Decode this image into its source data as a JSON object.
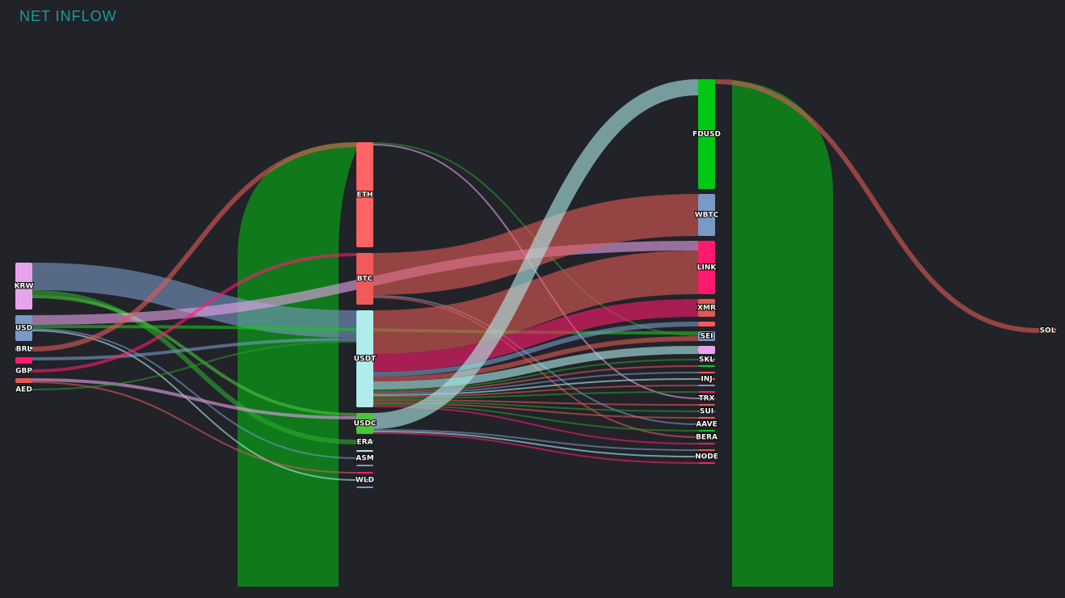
{
  "title": "NET INFLOW",
  "chart_data": {
    "type": "sankey",
    "title": "NET INFLOW",
    "nodes": [
      {
        "id": "KRW",
        "label": "KRW",
        "column": 0,
        "value": 29,
        "color": "#e8a4ea"
      },
      {
        "id": "USD",
        "label": "USD",
        "column": 0,
        "value": 16,
        "color": "#7a9ac6"
      },
      {
        "id": "BRL",
        "label": "BRL",
        "column": 0,
        "value": 3,
        "color": "#b0ecec"
      },
      {
        "id": "JPY",
        "label": "",
        "column": 0,
        "value": 4,
        "color": "#ff1a6e"
      },
      {
        "id": "GBP",
        "label": "GBP",
        "column": 0,
        "value": 2,
        "color": "#1ac41a"
      },
      {
        "id": "EUR",
        "label": "",
        "column": 0,
        "value": 3,
        "color": "#e05a55"
      },
      {
        "id": "AED",
        "label": "AED",
        "column": 0,
        "value": 1,
        "color": "#2a9a2a"
      },
      {
        "id": "ETH",
        "label": "ETH",
        "column": 1,
        "value": 65,
        "color": "#ff6464"
      },
      {
        "id": "BTC",
        "label": "BTC",
        "column": 1,
        "value": 32,
        "color": "#f05a5a"
      },
      {
        "id": "USDT",
        "label": "USDT",
        "column": 1,
        "value": 60,
        "color": "#b0ecec"
      },
      {
        "id": "USDC",
        "label": "USDC",
        "column": 1,
        "value": 13,
        "color": "#4cc43a"
      },
      {
        "id": "ERA",
        "label": "ERA",
        "column": 1,
        "value": 3,
        "color": "#2fa82f"
      },
      {
        "id": "BNB",
        "label": "",
        "column": 1,
        "value": 1,
        "color": "#b0ecec"
      },
      {
        "id": "ASM",
        "label": "ASM",
        "column": 1,
        "value": 1,
        "color": "#e05a55"
      },
      {
        "id": "ARB",
        "label": "",
        "column": 1,
        "value": 1,
        "color": "#7a9ac6"
      },
      {
        "id": "XRP",
        "label": "",
        "column": 1,
        "value": 1,
        "color": "#ff1a6e"
      },
      {
        "id": "WLD",
        "label": "WLD",
        "column": 1,
        "value": 1,
        "color": "#b0ecec"
      },
      {
        "id": "DOGE",
        "label": "",
        "column": 1,
        "value": 1,
        "color": "#7a9ac6"
      },
      {
        "id": "FDUSD",
        "label": "FDUSD",
        "column": 2,
        "value": 68,
        "color": "#00c814"
      },
      {
        "id": "WBTC",
        "label": "WBTC",
        "column": 2,
        "value": 26,
        "color": "#7a9ac6"
      },
      {
        "id": "LINK",
        "label": "LINK",
        "column": 2,
        "value": 33,
        "color": "#ff1a6e"
      },
      {
        "id": "XMR",
        "label": "XMR",
        "column": 2,
        "value": 11,
        "color": "#e05a55"
      },
      {
        "id": "OP",
        "label": "",
        "column": 2,
        "value": 3,
        "color": "#ff5a5a"
      },
      {
        "id": "SEI",
        "label": "SEI",
        "column": 2,
        "value": 6,
        "color": "#7a9ac6"
      },
      {
        "id": "TON",
        "label": "",
        "column": 2,
        "value": 5,
        "color": "#e8a4ea"
      },
      {
        "id": "SKL",
        "label": "SKL",
        "column": 2,
        "value": 1,
        "color": "#b0ecec"
      },
      {
        "id": "APT",
        "label": "",
        "column": 2,
        "value": 1,
        "color": "#1ac41a"
      },
      {
        "id": "DOT",
        "label": "",
        "column": 2,
        "value": 1,
        "color": "#ff5a5a"
      },
      {
        "id": "INJ",
        "label": "INJ",
        "column": 2,
        "value": 1,
        "color": "#ff5a5a"
      },
      {
        "id": "ATOM",
        "label": "",
        "column": 2,
        "value": 1,
        "color": "#7a9ac6"
      },
      {
        "id": "TIA",
        "label": "",
        "column": 2,
        "value": 1,
        "color": "#ff1a6e"
      },
      {
        "id": "TRX",
        "label": "TRX",
        "column": 2,
        "value": 1,
        "color": "#e8a4ea"
      },
      {
        "id": "NEAR",
        "label": "",
        "column": 2,
        "value": 1,
        "color": "#e05a55"
      },
      {
        "id": "SUI",
        "label": "SUI",
        "column": 2,
        "value": 1,
        "color": "#7a9ac6"
      },
      {
        "id": "FIL",
        "label": "",
        "column": 2,
        "value": 1,
        "color": "#ff5a5a"
      },
      {
        "id": "AAVE",
        "label": "AAVE",
        "column": 2,
        "value": 1,
        "color": "#ff5a5a"
      },
      {
        "id": "UNI",
        "label": "",
        "column": 2,
        "value": 1,
        "color": "#1ac41a"
      },
      {
        "id": "BERA",
        "label": "BERA",
        "column": 2,
        "value": 1,
        "color": "#2a9a2a"
      },
      {
        "id": "MKR",
        "label": "",
        "column": 2,
        "value": 1,
        "color": "#ff1a6e"
      },
      {
        "id": "LDO",
        "label": "",
        "column": 2,
        "value": 1,
        "color": "#e05a55"
      },
      {
        "id": "NODE",
        "label": "NODE",
        "column": 2,
        "value": 1,
        "color": "#b0ecec"
      },
      {
        "id": "PEPE",
        "label": "",
        "column": 2,
        "value": 1,
        "color": "#ff1a6e"
      },
      {
        "id": "SOL",
        "label": "SOL",
        "column": 3,
        "value": 3,
        "color": "#e05a55"
      }
    ],
    "links": [
      {
        "source": "KRW",
        "target": "USDT",
        "value": 17,
        "color": "#7a9ac6"
      },
      {
        "source": "KRW",
        "target": "ERA",
        "value": 3,
        "color": "#2fa82f"
      },
      {
        "source": "KRW",
        "target": "USDC",
        "value": 2,
        "color": "#4cc43a"
      },
      {
        "source": "USD",
        "target": "LINK",
        "value": 6,
        "color": "#e8a4ea"
      },
      {
        "source": "USD",
        "target": "SEI",
        "value": 2,
        "color": "#1ac41a"
      },
      {
        "source": "USD",
        "target": "ASM",
        "value": 1,
        "color": "#7a9ac6"
      },
      {
        "source": "USD",
        "target": "WLD",
        "value": 1,
        "color": "#b0ecec"
      },
      {
        "source": "BRL",
        "target": "ETH",
        "value": 3,
        "color": "#e05a55"
      },
      {
        "source": "JPY",
        "target": "USDT",
        "value": 2,
        "color": "#7a9ac6"
      },
      {
        "source": "GBP",
        "target": "BTC",
        "value": 2,
        "color": "#ff1a6e"
      },
      {
        "source": "EUR",
        "target": "USDC",
        "value": 2,
        "color": "#e8a4ea"
      },
      {
        "source": "EUR",
        "target": "XRP",
        "value": 1,
        "color": "#e05a55"
      },
      {
        "source": "AED",
        "target": "USDT",
        "value": 1,
        "color": "#2a9a2a"
      },
      {
        "source": "ETH",
        "target": "SEI",
        "value": 1,
        "color": "#2a9a2a"
      },
      {
        "source": "ETH",
        "target": "TRX",
        "value": 1,
        "color": "#e8a4ea"
      },
      {
        "source": "BTC",
        "target": "WBTC",
        "value": 26,
        "color": "#e05a55"
      },
      {
        "source": "BTC",
        "target": "AAVE",
        "value": 1,
        "color": "#7a9ac6"
      },
      {
        "source": "BTC",
        "target": "BERA",
        "value": 1,
        "color": "#e05a55"
      },
      {
        "source": "USDT",
        "target": "LINK",
        "value": 27,
        "color": "#e05a55"
      },
      {
        "source": "USDT",
        "target": "XMR",
        "value": 11,
        "color": "#ff1a6e"
      },
      {
        "source": "USDT",
        "target": "OP",
        "value": 3,
        "color": "#7a9ac6"
      },
      {
        "source": "USDT",
        "target": "SEI",
        "value": 3,
        "color": "#e05a55"
      },
      {
        "source": "USDT",
        "target": "TON",
        "value": 5,
        "color": "#b0ecec"
      },
      {
        "source": "USDT",
        "target": "SKL",
        "value": 1,
        "color": "#2a9a2a"
      },
      {
        "source": "USDT",
        "target": "APT",
        "value": 1,
        "color": "#e05a55"
      },
      {
        "source": "USDT",
        "target": "DOT",
        "value": 1,
        "color": "#7a9ac6"
      },
      {
        "source": "USDT",
        "target": "INJ",
        "value": 1,
        "color": "#b0ecec"
      },
      {
        "source": "USDT",
        "target": "ATOM",
        "value": 1,
        "color": "#e05a55"
      },
      {
        "source": "USDT",
        "target": "TIA",
        "value": 1,
        "color": "#2a9a2a"
      },
      {
        "source": "USDT",
        "target": "NEAR",
        "value": 1,
        "color": "#e05a55"
      },
      {
        "source": "USDT",
        "target": "SUI",
        "value": 1,
        "color": "#2a9a2a"
      },
      {
        "source": "USDT",
        "target": "FIL",
        "value": 1,
        "color": "#e05a55"
      },
      {
        "source": "USDT",
        "target": "UNI",
        "value": 1,
        "color": "#2a9a2a"
      },
      {
        "source": "USDT",
        "target": "MKR",
        "value": 1,
        "color": "#ff1a6e"
      },
      {
        "source": "USDC",
        "target": "FDUSD",
        "value": 10,
        "color": "#b0ecec"
      },
      {
        "source": "USDC",
        "target": "LDO",
        "value": 1,
        "color": "#7a9ac6"
      },
      {
        "source": "USDC",
        "target": "NODE",
        "value": 1,
        "color": "#b0ecec"
      },
      {
        "source": "USDC",
        "target": "PEPE",
        "value": 1,
        "color": "#ff1a6e"
      },
      {
        "source": "FDUSD",
        "target": "SOL",
        "value": 3,
        "color": "#e05a55"
      }
    ],
    "totals": [
      {
        "column": 1,
        "value": 143,
        "color": "#10791c"
      },
      {
        "column": 2,
        "value": 143,
        "color": "#10791c"
      }
    ]
  }
}
